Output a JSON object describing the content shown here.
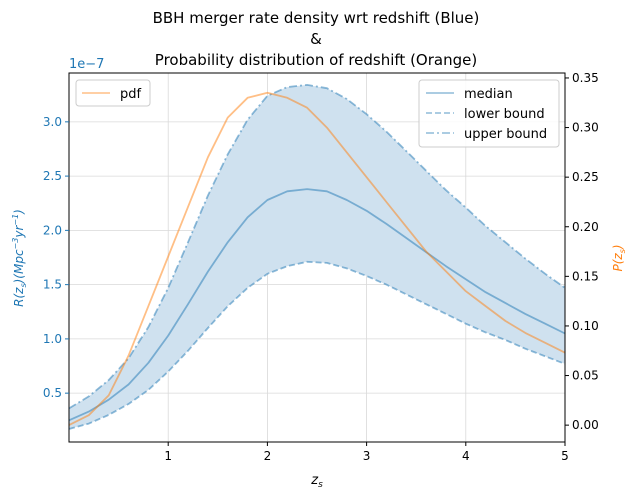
{
  "chart_data": {
    "type": "line",
    "title_lines": [
      "BBH merger rate density wrt redshift (Blue)",
      "&",
      "Probability distribution of redshift (Orange)"
    ],
    "xlabel": "z_s",
    "ylabel_left": "R(z_s)(Mpc^-3 yr^-1)",
    "ylabel_right": "P(z_s)",
    "left_axis_offset": "1e−7",
    "xlim": [
      0,
      5
    ],
    "ylim_left": [
      0.05,
      3.45
    ],
    "ylim_right": [
      -0.017,
      0.355
    ],
    "x_ticks": [
      1,
      2,
      3,
      4,
      5
    ],
    "y_left_ticks": [
      0.5,
      1.0,
      1.5,
      2.0,
      2.5,
      3.0
    ],
    "y_left_tick_labels": [
      "0.5",
      "1.0",
      "1.5",
      "2.0",
      "2.5",
      "3.0"
    ],
    "y_right_ticks": [
      0.0,
      0.05,
      0.1,
      0.15,
      0.2,
      0.25,
      0.3,
      0.35
    ],
    "y_right_tick_labels": [
      "0.00",
      "0.05",
      "0.10",
      "0.15",
      "0.20",
      "0.25",
      "0.30",
      "0.35"
    ],
    "grid": true,
    "legend_left": {
      "placement": "upper-left",
      "entries": [
        "pdf"
      ]
    },
    "legend_right": {
      "placement": "upper-right",
      "entries": [
        "median",
        "lower bound",
        "upper bound"
      ]
    },
    "colors": {
      "rate_line": "#1f77b4",
      "fill": "#cfe1ef",
      "pdf": "#ff7f0e",
      "left_axis": "#1f77b4",
      "right_axis": "#ff7f0e"
    },
    "x": [
      0.0,
      0.2,
      0.4,
      0.6,
      0.8,
      1.0,
      1.2,
      1.4,
      1.6,
      1.8,
      2.0,
      2.2,
      2.4,
      2.6,
      2.8,
      3.0,
      3.2,
      3.4,
      3.6,
      3.8,
      4.0,
      4.2,
      4.4,
      4.6,
      4.8,
      5.0
    ],
    "series": [
      {
        "name": "median",
        "axis": "left",
        "style": "solid",
        "values": [
          0.25,
          0.33,
          0.44,
          0.58,
          0.78,
          1.03,
          1.32,
          1.62,
          1.89,
          2.12,
          2.28,
          2.36,
          2.38,
          2.36,
          2.28,
          2.18,
          2.06,
          1.93,
          1.8,
          1.67,
          1.55,
          1.43,
          1.33,
          1.23,
          1.14,
          1.05
        ]
      },
      {
        "name": "lower bound",
        "axis": "left",
        "style": "dashed",
        "values": [
          0.17,
          0.22,
          0.3,
          0.4,
          0.53,
          0.7,
          0.89,
          1.1,
          1.3,
          1.47,
          1.6,
          1.67,
          1.71,
          1.7,
          1.65,
          1.58,
          1.5,
          1.41,
          1.32,
          1.23,
          1.14,
          1.06,
          0.99,
          0.91,
          0.84,
          0.77
        ]
      },
      {
        "name": "upper bound",
        "axis": "left",
        "style": "dashdot",
        "values": [
          0.36,
          0.47,
          0.62,
          0.82,
          1.11,
          1.47,
          1.89,
          2.32,
          2.7,
          3.02,
          3.24,
          3.32,
          3.34,
          3.31,
          3.21,
          3.07,
          2.91,
          2.73,
          2.55,
          2.37,
          2.21,
          2.04,
          1.89,
          1.74,
          1.6,
          1.47
        ]
      },
      {
        "name": "pdf",
        "axis": "right",
        "style": "solid",
        "values": [
          0.0,
          0.01,
          0.03,
          0.07,
          0.12,
          0.17,
          0.22,
          0.27,
          0.31,
          0.33,
          0.335,
          0.33,
          0.32,
          0.3,
          0.275,
          0.25,
          0.225,
          0.2,
          0.175,
          0.155,
          0.135,
          0.12,
          0.105,
          0.093,
          0.083,
          0.073
        ]
      }
    ]
  }
}
